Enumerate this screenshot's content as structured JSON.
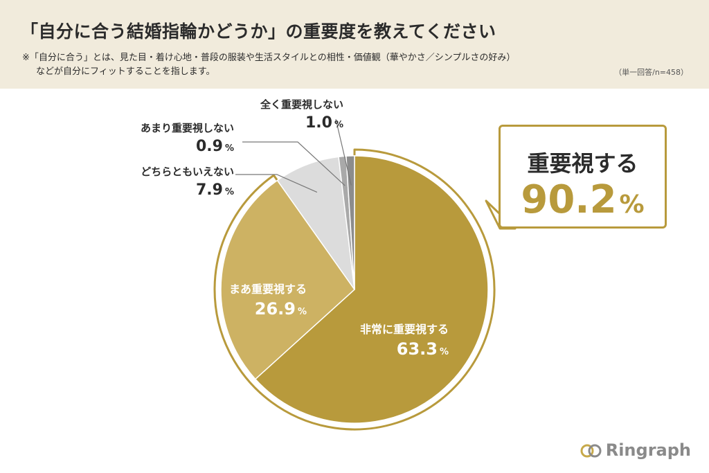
{
  "header": {
    "title": "「自分に合う結婚指輪かどうか」の重要度を教えてください",
    "note_line1": "※「自分に合う」とは、見た目・着け心地・普段の服装や生活スタイルとの相性・価値観（華やかさ／シンプルさの好み）",
    "note_line2": "などが自分にフィットすることを指します。",
    "basis": "（単一回答/n=458）"
  },
  "callout": {
    "label": "重要視する",
    "value": "90.2",
    "unit": "%"
  },
  "brand": {
    "name": "Ringraph",
    "icon": "ring-logo-icon"
  },
  "colors": {
    "dark_gold": "#b89a3c",
    "light_gold": "#cdb263",
    "gray1": "#dcdcdc",
    "gray2": "#a9a9a9",
    "gray3": "#8c8c8c",
    "header_bg": "#f1ebdc"
  },
  "chart_data": {
    "type": "pie",
    "start_angle_deg": 0,
    "direction": "clockwise",
    "unit": "%",
    "slices": [
      {
        "label": "非常に重要視する",
        "value": 63.3,
        "color": "#b89a3c",
        "value_text": "63.3"
      },
      {
        "label": "まあ重要視する",
        "value": 26.9,
        "color": "#cdb263",
        "value_text": "26.9"
      },
      {
        "label": "どちらともいえない",
        "value": 7.9,
        "color": "#dcdcdc",
        "value_text": "7.9"
      },
      {
        "label": "あまり重要視しない",
        "value": 0.9,
        "color": "#a9a9a9",
        "value_text": "0.9"
      },
      {
        "label": "全く重要視しない",
        "value": 1.0,
        "color": "#8c8c8c",
        "value_text": "1.0"
      }
    ],
    "highlight_group": {
      "label": "重要視する",
      "value": 90.2,
      "slices": [
        0,
        1
      ]
    }
  }
}
